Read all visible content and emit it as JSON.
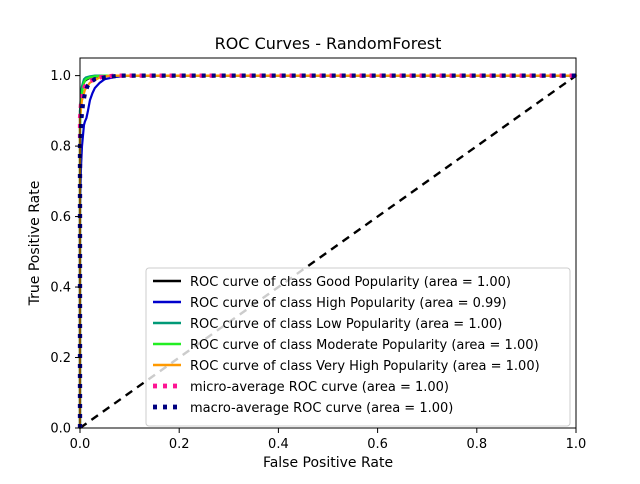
{
  "chart_data": {
    "type": "line",
    "title": "ROC Curves - RandomForest",
    "xlabel": "False Positive Rate",
    "ylabel": "True Positive Rate",
    "xlim": [
      0,
      1
    ],
    "ylim": [
      0,
      1.05
    ],
    "xticks": [
      "0.0",
      "0.2",
      "0.4",
      "0.6",
      "0.8",
      "1.0"
    ],
    "yticks": [
      "0.0",
      "0.2",
      "0.4",
      "0.6",
      "0.8",
      "1.0"
    ],
    "grid": false,
    "legend_position": "lower-right",
    "series": [
      {
        "name": "ROC curve of class Good Popularity (area = 1.00)",
        "color": "#000000",
        "style": "solid",
        "x": [
          0,
          0,
          0.002,
          0.004,
          0.006,
          0.008,
          0.01,
          0.015,
          0.02,
          0.03,
          0.05,
          0.08,
          1
        ],
        "y": [
          0,
          0.9,
          0.94,
          0.96,
          0.97,
          0.98,
          0.985,
          0.99,
          0.994,
          0.997,
          0.999,
          1,
          1
        ]
      },
      {
        "name": "ROC curve of class High Popularity (area = 0.99)",
        "color": "#0000cc",
        "style": "solid",
        "x": [
          0,
          0,
          0.002,
          0.004,
          0.006,
          0.008,
          0.01,
          0.013,
          0.016,
          0.02,
          0.025,
          0.03,
          0.04,
          0.05,
          0.07,
          0.1,
          1
        ],
        "y": [
          0,
          0.62,
          0.74,
          0.8,
          0.83,
          0.86,
          0.87,
          0.88,
          0.9,
          0.93,
          0.95,
          0.965,
          0.98,
          0.99,
          0.996,
          1,
          1
        ]
      },
      {
        "name": "ROC curve of class Low Popularity (area = 1.00)",
        "color": "#009977",
        "style": "solid",
        "x": [
          0,
          0,
          0.002,
          0.004,
          0.006,
          0.008,
          0.012,
          0.02,
          0.03,
          1
        ],
        "y": [
          0,
          0.9,
          0.95,
          0.97,
          0.98,
          0.99,
          0.995,
          0.998,
          1,
          1
        ]
      },
      {
        "name": "ROC curve of class Moderate Popularity (area = 1.00)",
        "color": "#22ee22",
        "style": "solid",
        "x": [
          0,
          0,
          0.002,
          0.005,
          0.008,
          0.012,
          0.02,
          0.03,
          0.05,
          1
        ],
        "y": [
          0,
          0.85,
          0.92,
          0.96,
          0.98,
          0.99,
          0.995,
          0.998,
          1,
          1
        ]
      },
      {
        "name": "ROC curve of class Very High Popularity (area = 1.00)",
        "color": "#ff9900",
        "style": "solid",
        "x": [
          0,
          0,
          0.004,
          0.01,
          0.02,
          0.04,
          0.06,
          1
        ],
        "y": [
          0,
          0.88,
          0.93,
          0.96,
          0.98,
          0.995,
          1,
          1
        ]
      },
      {
        "name": "micro-average ROC curve (area = 1.00)",
        "color": "#ff1493",
        "style": "dotted",
        "x": [
          0,
          0,
          0.002,
          0.005,
          0.01,
          0.02,
          0.04,
          0.07,
          1
        ],
        "y": [
          0,
          0.88,
          0.92,
          0.95,
          0.97,
          0.985,
          0.995,
          1,
          1
        ]
      },
      {
        "name": "macro-average ROC curve (area = 1.00)",
        "color": "#000080",
        "style": "dotted",
        "x": [
          0,
          0,
          0.003,
          0.006,
          0.01,
          0.015,
          0.02,
          0.03,
          0.05,
          0.08,
          1
        ],
        "y": [
          0,
          0.8,
          0.88,
          0.92,
          0.95,
          0.97,
          0.98,
          0.99,
          0.995,
          1,
          1
        ]
      }
    ],
    "reference_line": {
      "color": "#000000",
      "style": "dashed",
      "x": [
        0,
        1
      ],
      "y": [
        0,
        1
      ]
    }
  }
}
